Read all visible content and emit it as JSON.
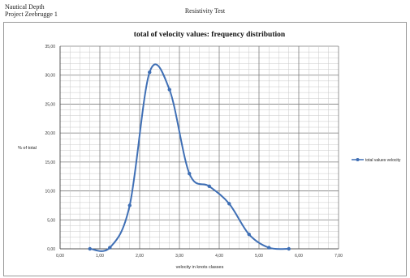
{
  "header": {
    "left_line1": "Nautical Depth",
    "left_line2": "Project Zeebrugge 1",
    "center": "Resistivity Test"
  },
  "chart_data": {
    "type": "line",
    "title": "total of velocity values: frequency distribution",
    "xlabel": "velocity in knots classes",
    "ylabel": "% of total",
    "xlim": [
      0,
      7
    ],
    "ylim": [
      0,
      35
    ],
    "x_ticks": [
      0,
      1,
      2,
      3,
      4,
      5,
      6,
      7
    ],
    "x_tick_labels": [
      "0,00",
      "1,00",
      "2,00",
      "3,00",
      "4,00",
      "5,00",
      "6,00",
      "7,00"
    ],
    "y_ticks": [
      0,
      5,
      10,
      15,
      20,
      25,
      30,
      35
    ],
    "y_tick_labels": [
      "0,00",
      "5,00",
      "10,00",
      "15,00",
      "20,00",
      "25,00",
      "30,00",
      "35,00"
    ],
    "grid": true,
    "smooth": true,
    "legend_position": "right",
    "color": "#3f6fb5",
    "series": [
      {
        "name": "total values velocity",
        "x": [
          0.75,
          1.25,
          1.75,
          2.25,
          2.75,
          3.25,
          3.75,
          4.25,
          4.75,
          5.25,
          5.75
        ],
        "y": [
          0.0,
          0.2,
          7.5,
          30.5,
          27.5,
          13.0,
          10.8,
          7.8,
          2.5,
          0.2,
          0.0
        ]
      }
    ]
  }
}
